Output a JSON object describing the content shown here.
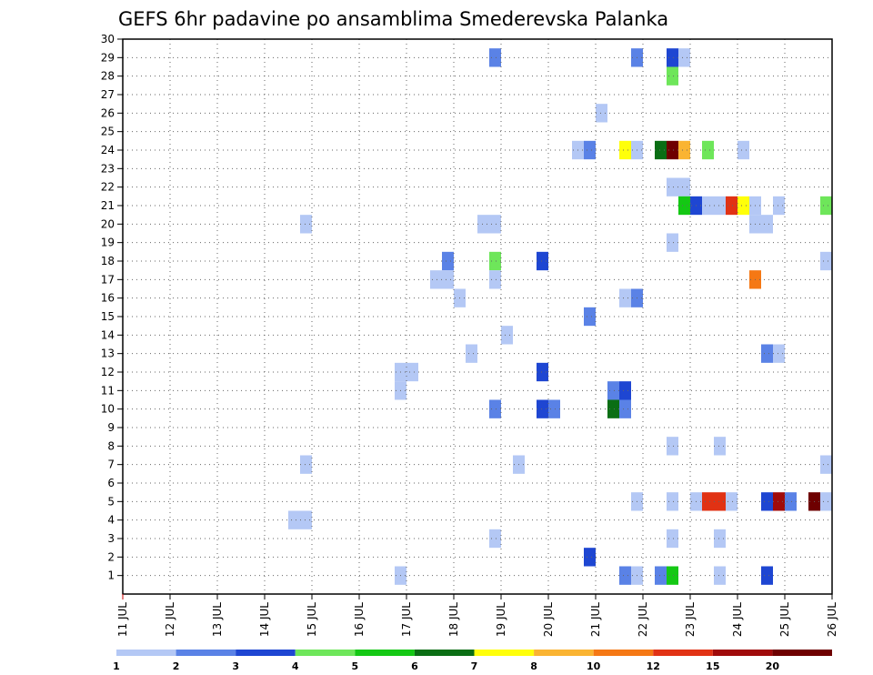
{
  "chart_data": {
    "type": "heatmap",
    "title": "GEFS 6hr padavine po ansamblima Smederevska Palanka",
    "x_labels": [
      "11 JUL",
      "12 JUL",
      "13 JUL",
      "14 JUL",
      "15 JUL",
      "16 JUL",
      "17 JUL",
      "18 JUL",
      "19 JUL",
      "20 JUL",
      "21 JUL",
      "22 JUL",
      "23 JUL",
      "24 JUL",
      "25 JUL",
      "26 JUL"
    ],
    "y_labels": [
      "1",
      "2",
      "3",
      "4",
      "5",
      "6",
      "7",
      "8",
      "9",
      "10",
      "11",
      "12",
      "13",
      "14",
      "15",
      "16",
      "17",
      "18",
      "19",
      "20",
      "21",
      "22",
      "23",
      "24",
      "25",
      "26",
      "27",
      "28",
      "29",
      "30"
    ],
    "x_unit": "6-hour step",
    "x_range": [
      0,
      60
    ],
    "y_range": [
      0,
      30
    ],
    "grid": true,
    "legend": {
      "placement": "bottom",
      "labels": [
        "1",
        "2",
        "3",
        "4",
        "5",
        "6",
        "7",
        "8",
        "10",
        "12",
        "15",
        "20"
      ],
      "colors": [
        "#b4c8f5",
        "#5a82e6",
        "#1e46d2",
        "#6ee65a",
        "#14c814",
        "#0a6e14",
        "#ffff0a",
        "#fab432",
        "#f57814",
        "#e13214",
        "#a00a0a",
        "#6e0000"
      ]
    },
    "cells": [
      [
        32,
        29,
        1
      ],
      [
        44,
        29,
        1
      ],
      [
        47,
        29,
        2
      ],
      [
        48,
        29,
        0
      ],
      [
        47,
        28,
        3
      ],
      [
        41,
        26,
        0
      ],
      [
        39,
        24,
        0
      ],
      [
        40,
        24,
        1
      ],
      [
        43,
        24,
        6
      ],
      [
        44,
        24,
        0
      ],
      [
        46,
        24,
        5
      ],
      [
        47,
        24,
        11
      ],
      [
        48,
        24,
        7
      ],
      [
        50,
        24,
        3
      ],
      [
        53,
        24,
        0
      ],
      [
        47,
        22,
        0
      ],
      [
        48,
        22,
        0
      ],
      [
        48,
        21,
        4
      ],
      [
        49,
        21,
        2
      ],
      [
        50,
        21,
        0
      ],
      [
        51,
        21,
        0
      ],
      [
        52,
        21,
        9
      ],
      [
        53,
        21,
        6
      ],
      [
        54,
        21,
        0
      ],
      [
        56,
        21,
        0
      ],
      [
        60,
        21,
        3
      ],
      [
        16,
        20,
        0
      ],
      [
        31,
        20,
        0
      ],
      [
        32,
        20,
        0
      ],
      [
        54,
        20,
        0
      ],
      [
        55,
        20,
        0
      ],
      [
        47,
        19,
        0
      ],
      [
        28,
        18,
        1
      ],
      [
        32,
        18,
        3
      ],
      [
        36,
        18,
        2
      ],
      [
        60,
        18,
        0
      ],
      [
        27,
        17,
        0
      ],
      [
        28,
        17,
        0
      ],
      [
        32,
        17,
        0
      ],
      [
        54,
        17,
        8
      ],
      [
        29,
        16,
        0
      ],
      [
        43,
        16,
        0
      ],
      [
        44,
        16,
        1
      ],
      [
        40,
        15,
        1
      ],
      [
        33,
        14,
        0
      ],
      [
        30,
        13,
        0
      ],
      [
        55,
        13,
        1
      ],
      [
        56,
        13,
        0
      ],
      [
        24,
        12,
        0
      ],
      [
        25,
        12,
        0
      ],
      [
        36,
        12,
        2
      ],
      [
        24,
        11,
        0
      ],
      [
        42,
        11,
        1
      ],
      [
        43,
        11,
        2
      ],
      [
        32,
        10,
        1
      ],
      [
        36,
        10,
        2
      ],
      [
        37,
        10,
        1
      ],
      [
        42,
        10,
        5
      ],
      [
        43,
        10,
        1
      ],
      [
        47,
        8,
        0
      ],
      [
        51,
        8,
        0
      ],
      [
        16,
        7,
        0
      ],
      [
        34,
        7,
        0
      ],
      [
        60,
        7,
        0
      ],
      [
        16,
        4,
        0
      ],
      [
        15,
        4,
        0
      ],
      [
        44,
        5,
        0
      ],
      [
        47,
        5,
        0
      ],
      [
        49,
        5,
        0
      ],
      [
        50,
        5,
        9
      ],
      [
        51,
        5,
        9
      ],
      [
        52,
        5,
        0
      ],
      [
        55,
        5,
        2
      ],
      [
        56,
        5,
        10
      ],
      [
        57,
        5,
        1
      ],
      [
        59,
        5,
        11
      ],
      [
        60,
        5,
        0
      ],
      [
        32,
        3,
        0
      ],
      [
        51,
        3,
        0
      ],
      [
        47,
        3,
        0
      ],
      [
        40,
        2,
        2
      ],
      [
        24,
        1,
        0
      ],
      [
        43,
        1,
        1
      ],
      [
        44,
        1,
        0
      ],
      [
        46,
        1,
        1
      ],
      [
        47,
        1,
        4
      ],
      [
        51,
        1,
        0
      ],
      [
        55,
        1,
        2
      ]
    ]
  }
}
